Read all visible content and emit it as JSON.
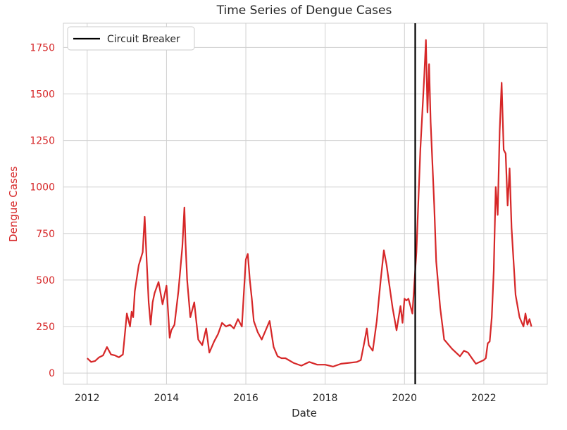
{
  "chart_data": {
    "type": "line",
    "title": "Time Series of Dengue Cases",
    "xlabel": "Date",
    "ylabel": "Dengue Cases",
    "xlim": [
      2011.4,
      2023.6
    ],
    "ylim": [
      -60,
      1880
    ],
    "x_ticks": [
      2012,
      2014,
      2016,
      2018,
      2020,
      2022
    ],
    "y_ticks": [
      0,
      250,
      500,
      750,
      1000,
      1250,
      1500,
      1750
    ],
    "grid": true,
    "legend_position": "top-left",
    "series": [
      {
        "name": "",
        "color": "#d62728",
        "x": [
          2012.0,
          2012.1,
          2012.2,
          2012.3,
          2012.4,
          2012.5,
          2012.6,
          2012.7,
          2012.8,
          2012.9,
          2013.0,
          2013.08,
          2013.12,
          2013.16,
          2013.2,
          2013.25,
          2013.3,
          2013.4,
          2013.45,
          2013.5,
          2013.55,
          2013.6,
          2013.65,
          2013.7,
          2013.8,
          2013.9,
          2014.0,
          2014.08,
          2014.12,
          2014.2,
          2014.3,
          2014.4,
          2014.45,
          2014.48,
          2014.52,
          2014.6,
          2014.7,
          2014.8,
          2014.9,
          2015.0,
          2015.08,
          2015.2,
          2015.3,
          2015.4,
          2015.5,
          2015.6,
          2015.7,
          2015.8,
          2015.9,
          2016.0,
          2016.05,
          2016.1,
          2016.15,
          2016.2,
          2016.3,
          2016.4,
          2016.5,
          2016.6,
          2016.7,
          2016.8,
          2016.9,
          2017.0,
          2017.2,
          2017.4,
          2017.6,
          2017.8,
          2018.0,
          2018.2,
          2018.4,
          2018.6,
          2018.8,
          2018.9,
          2019.0,
          2019.05,
          2019.1,
          2019.2,
          2019.3,
          2019.4,
          2019.48,
          2019.55,
          2019.6,
          2019.7,
          2019.8,
          2019.9,
          2019.95,
          2020.0,
          2020.05,
          2020.1,
          2020.2,
          2020.3,
          2020.4,
          2020.45,
          2020.5,
          2020.54,
          2020.58,
          2020.62,
          2020.66,
          2020.75,
          2020.8,
          2020.9,
          2021.0,
          2021.2,
          2021.4,
          2021.5,
          2021.6,
          2021.7,
          2021.8,
          2021.9,
          2022.0,
          2022.05,
          2022.1,
          2022.15,
          2022.2,
          2022.25,
          2022.3,
          2022.35,
          2022.4,
          2022.45,
          2022.5,
          2022.55,
          2022.6,
          2022.65,
          2022.7,
          2022.8,
          2022.9,
          2023.0,
          2023.05,
          2023.1,
          2023.15,
          2023.2
        ],
        "y": [
          80,
          60,
          65,
          85,
          95,
          140,
          100,
          95,
          85,
          100,
          320,
          250,
          330,
          300,
          440,
          510,
          580,
          650,
          840,
          600,
          380,
          260,
          380,
          430,
          490,
          370,
          470,
          190,
          230,
          260,
          440,
          680,
          890,
          700,
          500,
          300,
          380,
          180,
          150,
          240,
          110,
          170,
          210,
          270,
          250,
          260,
          240,
          290,
          250,
          610,
          640,
          500,
          400,
          280,
          220,
          180,
          230,
          280,
          140,
          90,
          80,
          80,
          55,
          40,
          60,
          45,
          45,
          35,
          50,
          55,
          60,
          70,
          180,
          240,
          150,
          120,
          280,
          500,
          660,
          580,
          500,
          350,
          230,
          360,
          270,
          400,
          390,
          400,
          320,
          650,
          1200,
          1400,
          1600,
          1790,
          1400,
          1660,
          1350,
          900,
          600,
          350,
          180,
          130,
          90,
          120,
          110,
          80,
          50,
          60,
          70,
          80,
          160,
          170,
          300,
          550,
          1000,
          850,
          1300,
          1560,
          1200,
          1180,
          900,
          1100,
          780,
          420,
          300,
          250,
          320,
          260,
          290,
          250
        ]
      }
    ],
    "vline": {
      "x": 2020.27,
      "color": "#000000",
      "label": "Circuit Breaker"
    }
  }
}
